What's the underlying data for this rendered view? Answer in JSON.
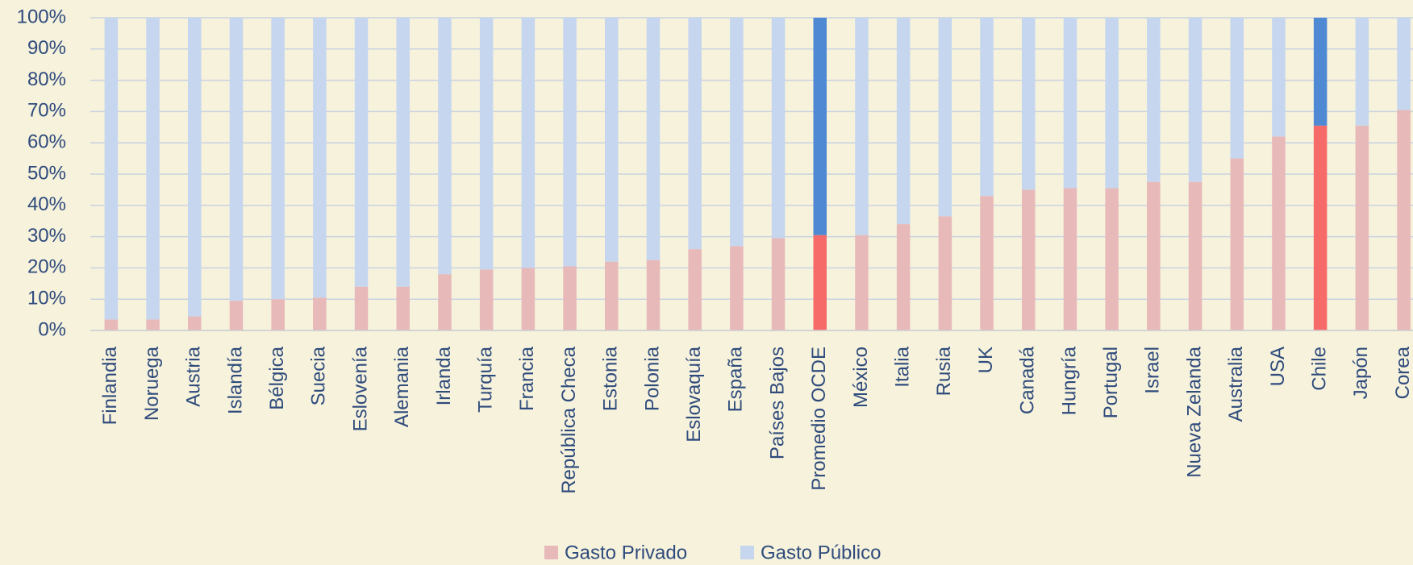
{
  "chart_data": {
    "type": "stacked_bar_percent",
    "categories": [
      "Finlandia",
      "Noruega",
      "Austria",
      "Islandía",
      "Bélgica",
      "Suecia",
      "Eslovenía",
      "Alemania",
      "Irlanda",
      "Turquía",
      "Francia",
      "República Checa",
      "Estonia",
      "Polonia",
      "Eslovaquía",
      "España",
      "Países Bajos",
      "Promedio OCDE",
      "México",
      "Italia",
      "Rusia",
      "UK",
      "Canadá",
      "Hungría",
      "Portugal",
      "Israel",
      "Nueva Zelanda",
      "Australia",
      "USA",
      "Chile",
      "Japón",
      "Corea"
    ],
    "series": [
      {
        "name": "Gasto Privado",
        "color": "#e8b9b9",
        "highlight_color": "#f76a6a",
        "values": [
          3.5,
          3.5,
          4.5,
          9.5,
          10,
          10.5,
          14,
          14,
          18,
          19.5,
          20,
          20.5,
          22,
          22.5,
          26,
          27,
          29.5,
          30.5,
          30.5,
          34,
          36.5,
          43,
          45,
          45.5,
          45.5,
          47.5,
          47.5,
          55,
          62,
          65.5,
          65.5,
          70.5
        ]
      },
      {
        "name": "Gasto Público",
        "color": "#c6d6ef",
        "highlight_color": "#4f89d3",
        "values": [
          96.5,
          96.5,
          95.5,
          90.5,
          90,
          89.5,
          86,
          86,
          82,
          80.5,
          80,
          79.5,
          78,
          77.5,
          74,
          73,
          70.5,
          69.5,
          69.5,
          66,
          63.5,
          57,
          55,
          54.5,
          54.5,
          52.5,
          52.5,
          45,
          38,
          34.5,
          34.5,
          29.5
        ]
      }
    ],
    "highlight": [
      "Promedio OCDE",
      "Chile"
    ],
    "ylim": [
      0,
      100
    ],
    "yticks": [
      {
        "value": 0,
        "label": "0%"
      },
      {
        "value": 10,
        "label": "10%"
      },
      {
        "value": 20,
        "label": "20%"
      },
      {
        "value": 30,
        "label": "30%"
      },
      {
        "value": 40,
        "label": "40%"
      },
      {
        "value": 50,
        "label": "50%"
      },
      {
        "value": 60,
        "label": "60%"
      },
      {
        "value": 70,
        "label": "70%"
      },
      {
        "value": 80,
        "label": "80%"
      },
      {
        "value": 90,
        "label": "90%"
      },
      {
        "value": 100,
        "label": "100%"
      }
    ],
    "grid": true,
    "legend": "bottom"
  }
}
